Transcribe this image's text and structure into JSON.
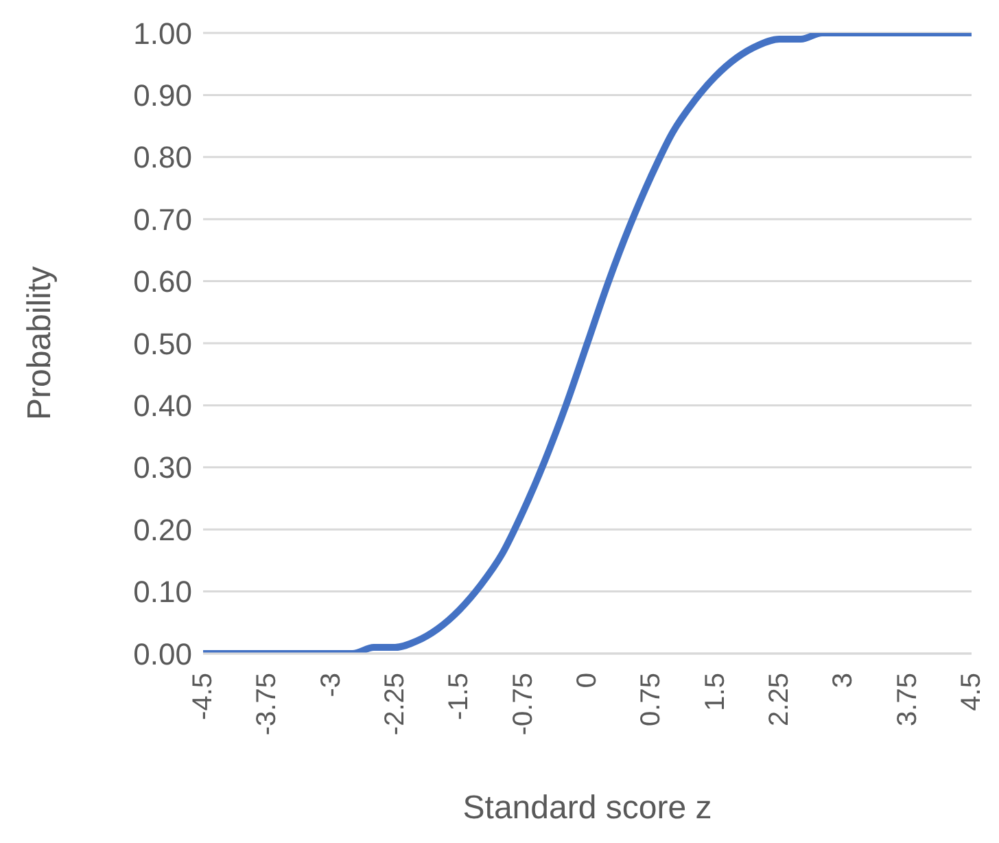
{
  "chart_data": {
    "type": "line",
    "xlabel": "Standard score z",
    "ylabel": "Probability",
    "x": [
      -4.5,
      -4.25,
      -4,
      -3.75,
      -3.5,
      -3.25,
      -3,
      -2.75,
      -2.5,
      -2.25,
      -2,
      -1.75,
      -1.5,
      -1.25,
      -1,
      -0.75,
      -0.5,
      -0.25,
      0,
      0.25,
      0.5,
      0.75,
      1,
      1.25,
      1.5,
      1.75,
      2,
      2.25,
      2.5,
      2.75,
      3,
      3.25,
      3.5,
      3.75,
      4,
      4.25,
      4.5
    ],
    "series": [
      {
        "color": "#4472c4",
        "values": [
          0,
          0,
          0,
          0,
          0,
          0,
          0,
          0,
          0.01,
          0.01,
          0.02,
          0.04,
          0.07,
          0.11,
          0.16,
          0.23,
          0.31,
          0.4,
          0.5,
          0.6,
          0.69,
          0.77,
          0.84,
          0.89,
          0.93,
          0.96,
          0.98,
          0.99,
          0.99,
          1,
          1,
          1,
          1,
          1,
          1,
          1,
          1
        ]
      }
    ],
    "xlim": [
      -4.5,
      4.5
    ],
    "xticks": [
      -4.5,
      -3.75,
      -3,
      -2.25,
      -1.5,
      -0.75,
      0,
      0.75,
      1.5,
      2.25,
      3,
      3.75,
      4.5
    ],
    "ylim": [
      0,
      1
    ],
    "yticks": [
      {
        "value": 0,
        "label": "0.00"
      },
      {
        "value": 0.1,
        "label": "0.10"
      },
      {
        "value": 0.2,
        "label": "0.20"
      },
      {
        "value": 0.3,
        "label": "0.30"
      },
      {
        "value": 0.4,
        "label": "0.40"
      },
      {
        "value": 0.5,
        "label": "0.50"
      },
      {
        "value": 0.6,
        "label": "0.60"
      },
      {
        "value": 0.7,
        "label": "0.70"
      },
      {
        "value": 0.8,
        "label": "0.80"
      },
      {
        "value": 0.9,
        "label": "0.90"
      },
      {
        "value": 1,
        "label": "1.00"
      }
    ],
    "grid": "y",
    "legend": false,
    "marker": "none",
    "line_style": "solid"
  }
}
